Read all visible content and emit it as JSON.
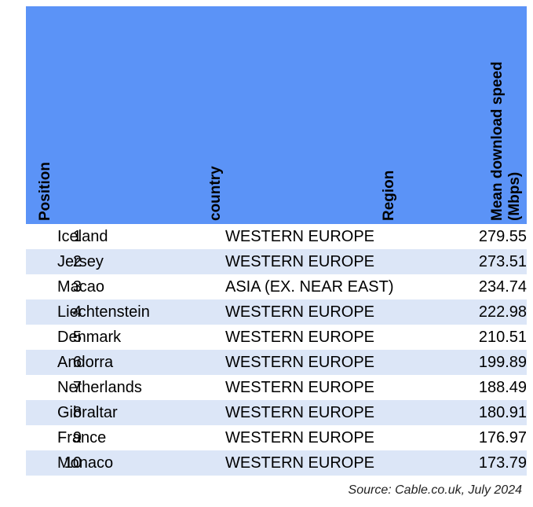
{
  "chart_data": {
    "type": "table",
    "columns": [
      "Position",
      "country",
      "Region",
      "Mean download speed (Mbps)"
    ],
    "rows": [
      {
        "position": "1",
        "country": "Iceland",
        "region": "WESTERN EUROPE",
        "speed": "279.55"
      },
      {
        "position": "2",
        "country": "Jersey",
        "region": "WESTERN EUROPE",
        "speed": "273.51"
      },
      {
        "position": "3",
        "country": "Macao",
        "region": "ASIA (EX. NEAR EAST)",
        "speed": "234.74"
      },
      {
        "position": "4",
        "country": "Liechtenstein",
        "region": "WESTERN EUROPE",
        "speed": "222.98"
      },
      {
        "position": "5",
        "country": "Denmark",
        "region": "WESTERN EUROPE",
        "speed": "210.51"
      },
      {
        "position": "6",
        "country": "Andorra",
        "region": "WESTERN EUROPE",
        "speed": "199.89"
      },
      {
        "position": "7",
        "country": "Netherlands",
        "region": "WESTERN EUROPE",
        "speed": "188.49"
      },
      {
        "position": "8",
        "country": "Gibraltar",
        "region": "WESTERN EUROPE",
        "speed": "180.91"
      },
      {
        "position": "9",
        "country": "France",
        "region": "WESTERN EUROPE",
        "speed": "176.97"
      },
      {
        "position": "10",
        "country": "Monaco",
        "region": "WESTERN EUROPE",
        "speed": "173.79"
      }
    ],
    "header_lines": {
      "position": "Position",
      "country": "country",
      "region": "Region",
      "speed_line1": "Mean download speed",
      "speed_line2": "(Mbps)"
    },
    "source": "Source: Cable.co.uk, July 2024"
  },
  "colors": {
    "header_background": "#5b93f7",
    "alternate_row": "#dce6f7"
  }
}
